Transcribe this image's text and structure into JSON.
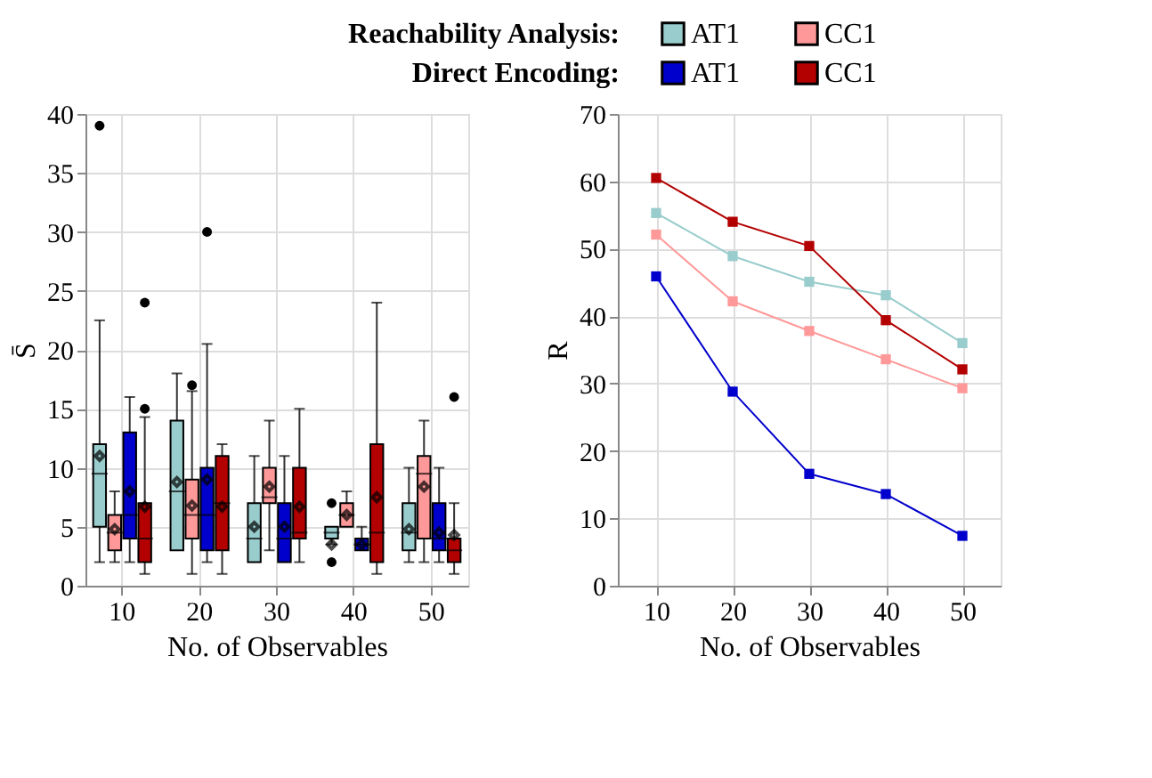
{
  "chart_data": [
    {
      "type": "box",
      "xlabel": "No. of Observables",
      "ylabel": "S̄",
      "categories": [
        "10",
        "20",
        "30",
        "40",
        "50"
      ],
      "ylim": [
        0,
        40
      ],
      "yticks": [
        0,
        5,
        10,
        15,
        20,
        25,
        30,
        35,
        40
      ],
      "grid": true,
      "legend": "top",
      "annotations": [
        "Reachability Analysis:",
        "Direct Encoding:"
      ],
      "series": [
        {
          "name": "AT1",
          "color": "#99cccc",
          "boxes": [
            {
              "low": 2,
              "q1": 5,
              "median": 9.5,
              "q3": 12,
              "high": 22.5,
              "mean": 11,
              "outliers": [
                39
              ]
            },
            {
              "low": 3,
              "q1": 3,
              "median": 8,
              "q3": 14,
              "high": 18,
              "mean": 8.8
            },
            {
              "low": 2,
              "q1": 2,
              "median": 4,
              "q3": 7,
              "high": 11,
              "mean": 5
            },
            {
              "low": 3.5,
              "q1": 4,
              "median": 4.5,
              "q3": 5,
              "high": 5,
              "mean": 3.5,
              "outliers": [
                7,
                2
              ]
            },
            {
              "low": 2,
              "q1": 3,
              "median": 4.5,
              "q3": 7,
              "high": 10,
              "mean": 4.8
            }
          ]
        },
        {
          "name": "CC1",
          "color": "#ff9999",
          "boxes": [
            {
              "low": 2,
              "q1": 3,
              "median": 4.5,
              "q3": 6,
              "high": 8,
              "mean": 4.8
            },
            {
              "low": 1,
              "q1": 4,
              "median": 6,
              "q3": 9,
              "high": 16.5,
              "mean": 6.8,
              "outliers": [
                17
              ]
            },
            {
              "low": 3,
              "q1": 7,
              "median": 7.5,
              "q3": 10,
              "high": 14,
              "mean": 8.4
            },
            {
              "low": 5,
              "q1": 5,
              "median": 6,
              "q3": 7,
              "high": 8,
              "mean": 6
            },
            {
              "low": 2,
              "q1": 4,
              "median": 9.5,
              "q3": 11,
              "high": 14,
              "mean": 8.4
            }
          ]
        },
        {
          "name": "AT1",
          "color": "#0000cc",
          "boxes": [
            {
              "low": 2,
              "q1": 4,
              "median": 6,
              "q3": 13,
              "high": 16,
              "mean": 8
            },
            {
              "low": 2,
              "q1": 3,
              "median": 6,
              "q3": 10,
              "high": 20.5,
              "mean": 9,
              "outliers": [
                30
              ]
            },
            {
              "low": 2,
              "q1": 2,
              "median": 4,
              "q3": 7,
              "high": 11,
              "mean": 5
            },
            {
              "low": 3,
              "q1": 3,
              "median": 3.5,
              "q3": 4,
              "high": 5,
              "mean": 3.5
            },
            {
              "low": 2,
              "q1": 3,
              "median": 4,
              "q3": 7,
              "high": 10,
              "mean": 4.5
            }
          ]
        },
        {
          "name": "CC1",
          "color": "#b30000",
          "boxes": [
            {
              "low": 1,
              "q1": 2,
              "median": 4,
              "q3": 7,
              "high": 14.3,
              "mean": 6.7,
              "outliers": [
                24,
                15
              ]
            },
            {
              "low": 1,
              "q1": 3,
              "median": 7,
              "q3": 11,
              "high": 12,
              "mean": 6.7
            },
            {
              "low": 2,
              "q1": 4,
              "median": 4.5,
              "q3": 10,
              "high": 15,
              "mean": 6.7
            },
            {
              "low": 1,
              "q1": 2,
              "median": 4.5,
              "q3": 12,
              "high": 24,
              "mean": 7.5
            },
            {
              "low": 1,
              "q1": 2,
              "median": 3,
              "q3": 4,
              "high": 7,
              "mean": 4.3,
              "outliers": [
                16
              ]
            }
          ]
        }
      ]
    },
    {
      "type": "line",
      "xlabel": "No. of Observables",
      "ylabel": "R",
      "categories": [
        "10",
        "20",
        "30",
        "40",
        "50"
      ],
      "ylim": [
        0,
        70
      ],
      "yticks": [
        0,
        10,
        20,
        30,
        40,
        50,
        60,
        70
      ],
      "grid": true,
      "marker": "square",
      "series": [
        {
          "color": "#99cccc",
          "values": [
            55.3,
            48.9,
            45.1,
            43.1,
            36
          ]
        },
        {
          "color": "#ff9999",
          "values": [
            52.1,
            42.2,
            37.8,
            33.6,
            29.3
          ]
        },
        {
          "color": "#0000cc",
          "values": [
            45.9,
            28.8,
            16.6,
            13.6,
            7.4
          ]
        },
        {
          "color": "#b30000",
          "values": [
            60.5,
            54,
            50.4,
            39.4,
            32.1
          ]
        }
      ]
    }
  ]
}
